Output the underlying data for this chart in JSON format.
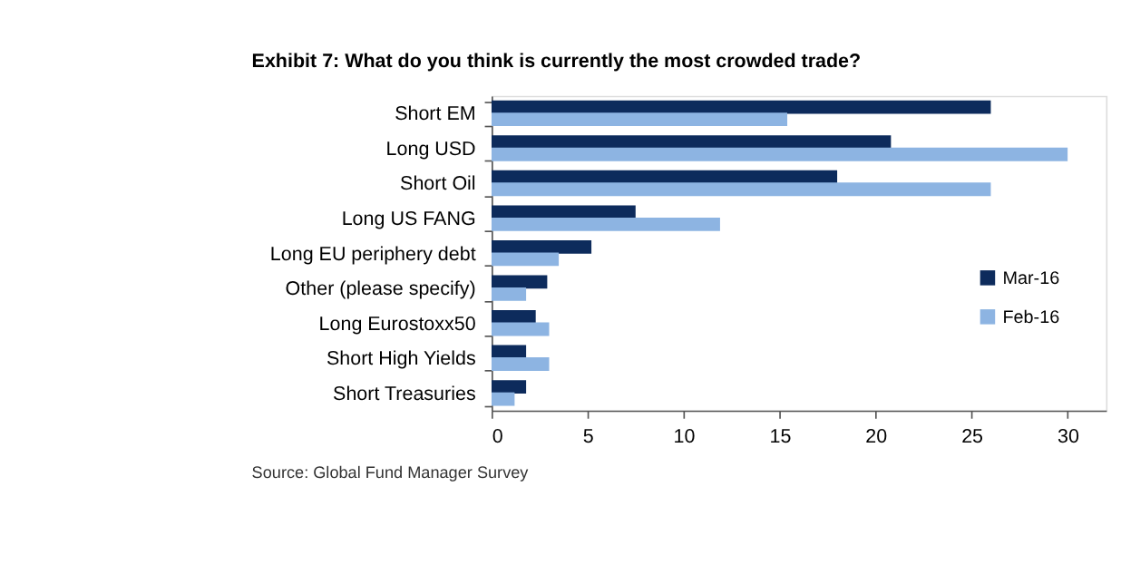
{
  "chart_data": {
    "type": "bar",
    "orientation": "horizontal",
    "title": "Exhibit 7: What do you think is currently the most crowded trade?",
    "categories": [
      "Short EM",
      "Long USD",
      "Short Oil",
      "Long US FANG",
      "Long EU periphery debt",
      "Other (please specify)",
      "Long Eurostoxx50",
      "Short High Yields",
      "Short Treasuries"
    ],
    "series": [
      {
        "name": "Mar-16",
        "color": "#0d2b5c",
        "values": [
          26.0,
          20.8,
          18.0,
          7.5,
          5.2,
          2.9,
          2.3,
          1.8,
          1.8
        ]
      },
      {
        "name": "Feb-16",
        "color": "#8db4e2",
        "values": [
          15.4,
          30.0,
          26.0,
          11.9,
          3.5,
          1.8,
          3.0,
          3.0,
          1.2
        ]
      }
    ],
    "xlim": [
      0,
      32
    ],
    "xticks": [
      0,
      5,
      10,
      15,
      20,
      25,
      30
    ],
    "grid": false,
    "legend": "right",
    "annotations": [
      "Source: Global Fund Manager Survey"
    ]
  }
}
